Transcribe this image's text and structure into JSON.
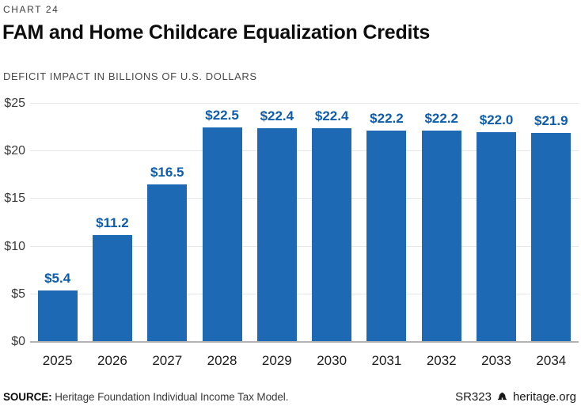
{
  "header": {
    "kicker": "CHART 24",
    "title": "FAM and Home Childcare Equalization Credits",
    "subtitle": "DEFICIT IMPACT IN BILLIONS OF U.S. DOLLARS"
  },
  "chart_data": {
    "type": "bar",
    "title": "FAM and Home Childcare Equalization Credits",
    "subtitle": "DEFICIT IMPACT IN BILLIONS OF U.S. DOLLARS",
    "categories": [
      "2025",
      "2026",
      "2027",
      "2028",
      "2029",
      "2030",
      "2031",
      "2032",
      "2033",
      "2034"
    ],
    "values": [
      5.4,
      11.2,
      16.5,
      22.5,
      22.4,
      22.4,
      22.2,
      22.2,
      22.0,
      21.9
    ],
    "bar_labels": [
      "$5.4",
      "$11.2",
      "$16.5",
      "$22.5",
      "$22.4",
      "$22.4",
      "$22.2",
      "$22.2",
      "$22.0",
      "$21.9"
    ],
    "xlabel": "",
    "ylabel": "DEFICIT IMPACT IN BILLIONS OF U.S. DOLLARS",
    "ylim": [
      0,
      25
    ],
    "yticks": [
      0,
      5,
      10,
      15,
      20,
      25
    ],
    "ytick_labels": [
      "$0",
      "$5",
      "$10",
      "$15",
      "$20",
      "$25"
    ],
    "grid": true,
    "legend": "none",
    "bar_color": "#1e69b4",
    "label_color": "#0e5dad"
  },
  "footer": {
    "source_label": "SOURCE:",
    "source_text": " Heritage Foundation Individual Income Tax Model.",
    "report_id": "SR323",
    "brand_icon": "liberty-bell-icon",
    "site": "heritage.org"
  }
}
